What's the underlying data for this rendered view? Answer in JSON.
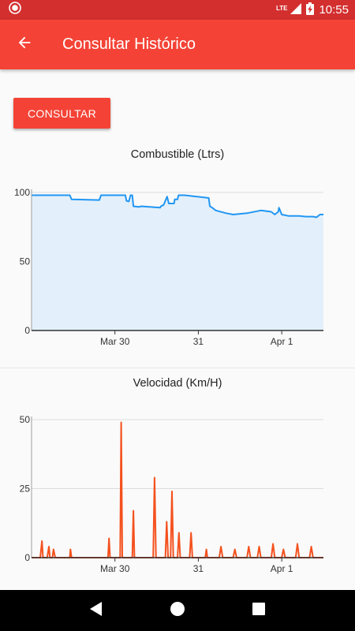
{
  "status_bar": {
    "time": "10:55",
    "network": "LTE",
    "icons": [
      "notification-icon",
      "lte-signal-icon",
      "battery-charging-icon"
    ]
  },
  "app_bar": {
    "title": "Consultar Histórico",
    "back_icon": "arrow-back-icon"
  },
  "main": {
    "consult_button_label": "CONSULTAR"
  },
  "colors": {
    "status_bar": "#d32f2f",
    "app_bar": "#f44336",
    "fuel_line": "#2196f3",
    "fuel_fill": "#e3f0fb",
    "speed_line": "#f4511e"
  },
  "chart_data": [
    {
      "type": "area",
      "title": "Combustible (Ltrs)",
      "x_ticks": [
        {
          "label": "Mar 30",
          "x": 24
        },
        {
          "label": "31",
          "x": 48
        },
        {
          "label": "Apr 1",
          "x": 72
        }
      ],
      "y_ticks": [
        0,
        50,
        100
      ],
      "xlim": [
        0,
        84
      ],
      "ylim": [
        0,
        100
      ],
      "grid": true,
      "x": [
        0,
        11,
        11.5,
        19.5,
        20,
        27,
        27.3,
        28,
        28.5,
        29,
        29.3,
        31,
        31.5,
        37,
        37.2,
        38,
        39,
        39.5,
        41,
        41.2,
        42,
        42.3,
        43.5,
        44,
        51,
        51.3,
        52,
        53,
        56,
        58,
        62,
        66,
        69,
        70,
        71,
        71.2,
        72,
        74,
        77,
        79,
        81,
        82,
        83,
        84
      ],
      "values": [
        98,
        98,
        95,
        94.5,
        98,
        98,
        94,
        93.5,
        98,
        98,
        90,
        89.5,
        90,
        89,
        90,
        91,
        97,
        92,
        92,
        95,
        95,
        98,
        98,
        98,
        96,
        90,
        89,
        87,
        85,
        84,
        85,
        87,
        86,
        84,
        86,
        89,
        84,
        83,
        83,
        82.5,
        82.5,
        82,
        84,
        84
      ]
    },
    {
      "type": "line",
      "title": "Velocidad (Km/H)",
      "x_ticks": [
        {
          "label": "Mar 30",
          "x": 24
        },
        {
          "label": "31",
          "x": 48
        },
        {
          "label": "Apr 1",
          "x": 72
        }
      ],
      "y_ticks": [
        0,
        25,
        50
      ],
      "xlim": [
        0,
        84
      ],
      "ylim": [
        0,
        50
      ],
      "grid": true,
      "x": [
        0,
        2.5,
        3,
        3.3,
        4.5,
        5,
        5.3,
        6,
        6.3,
        6.8,
        7.5,
        11,
        11.2,
        11.5,
        22,
        22.3,
        22.6,
        25.5,
        25.8,
        26.1,
        29,
        29.3,
        29.6,
        35,
        35.4,
        35.8,
        38.5,
        38.9,
        39.3,
        40,
        40.4,
        40.8,
        42,
        42.4,
        42.8,
        45.5,
        45.9,
        46.3,
        50,
        50.3,
        50.6,
        54,
        54.5,
        55,
        58,
        58.5,
        59,
        62,
        62.5,
        63,
        65,
        65.5,
        66,
        69,
        69.5,
        70,
        72,
        72.5,
        73,
        76,
        76.5,
        77,
        80,
        80.5,
        81,
        84
      ],
      "values": [
        0,
        0,
        6,
        0,
        0,
        4,
        0,
        0,
        3,
        0,
        0,
        0,
        3,
        0,
        0,
        7,
        0,
        0,
        49,
        0,
        0,
        17,
        0,
        0,
        29,
        0,
        0,
        13,
        0,
        0,
        24,
        0,
        0,
        9,
        0,
        0,
        9,
        0,
        0,
        3,
        0,
        0,
        4,
        0,
        0,
        3,
        0,
        0,
        4,
        0,
        0,
        4,
        0,
        0,
        5,
        0,
        0,
        3,
        0,
        0,
        5,
        0,
        0,
        4,
        0,
        0
      ]
    }
  ]
}
